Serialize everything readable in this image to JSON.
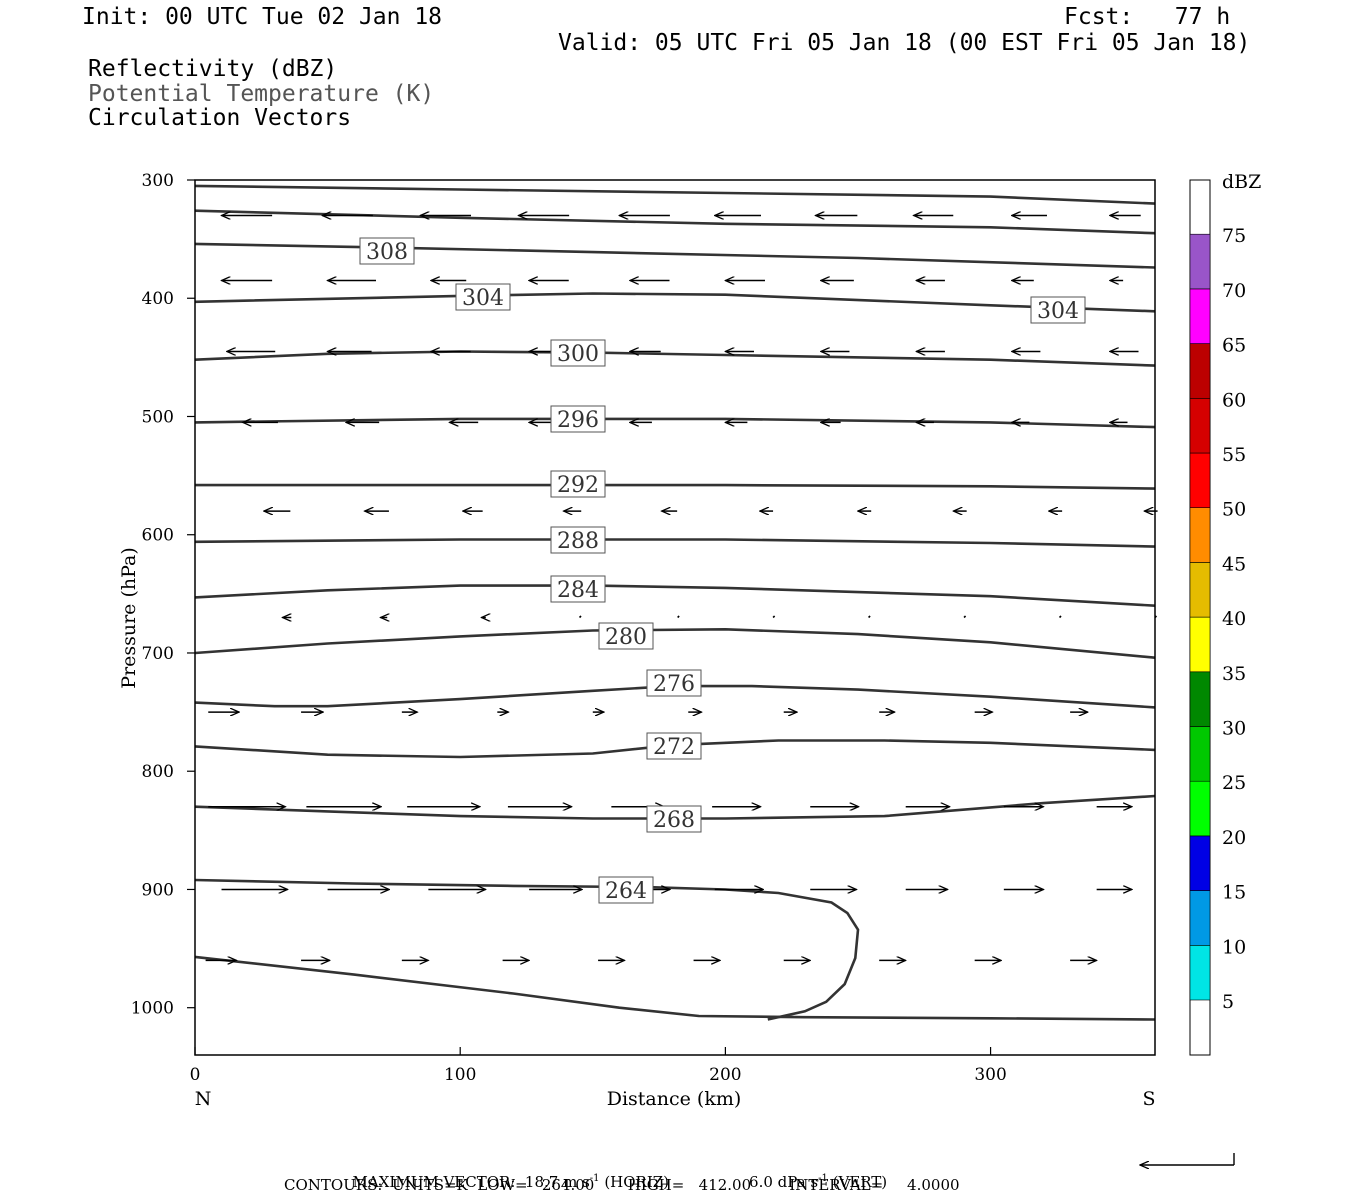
{
  "header": {
    "init": "Init: 00 UTC Tue 02 Jan 18",
    "fcst": "Fcst:   77 h",
    "valid": "Valid: 05 UTC Fri 05 Jan 18 (00 EST Fri 05 Jan 18)",
    "fields": [
      "Reflectivity (dBZ)",
      "Potential Temperature (K)",
      "Circulation Vectors"
    ]
  },
  "colors": {
    "contour": "#333333",
    "field2": "#555555",
    "colorbar": [
      "#00e5e5",
      "#0099e5",
      "#0000e5",
      "#00ff00",
      "#00c800",
      "#008800",
      "#ffff00",
      "#e5bc00",
      "#ff8c00",
      "#ff0000",
      "#d50000",
      "#bc0000",
      "#ff00ff",
      "#9955c9"
    ]
  },
  "chart_data": {
    "type": "line",
    "xlabel": "Distance (km)",
    "ylabel": "Pressure (hPa)",
    "xlim": [
      0,
      362
    ],
    "ylim": [
      1040,
      300
    ],
    "x_ticks": [
      0,
      100,
      200,
      300
    ],
    "y_ticks": [
      300,
      400,
      500,
      600,
      700,
      800,
      900,
      1000
    ],
    "end_labels": {
      "left": "N",
      "right": "S"
    },
    "colorbar": {
      "unit": "dBZ",
      "levels": [
        5,
        10,
        15,
        20,
        25,
        30,
        35,
        40,
        45,
        50,
        55,
        60,
        65,
        70,
        75
      ]
    },
    "isentropes": [
      {
        "label": "",
        "points": [
          [
            0,
            305
          ],
          [
            100,
            308
          ],
          [
            200,
            311
          ],
          [
            300,
            314
          ],
          [
            362,
            320
          ]
        ]
      },
      {
        "label": "",
        "points": [
          [
            0,
            326
          ],
          [
            100,
            332
          ],
          [
            200,
            337
          ],
          [
            300,
            340
          ],
          [
            362,
            345
          ]
        ]
      },
      {
        "label": "308",
        "points": [
          [
            0,
            354
          ],
          [
            70,
            357
          ],
          [
            150,
            361
          ],
          [
            250,
            366
          ],
          [
            362,
            374
          ]
        ]
      },
      {
        "label": "304",
        "points": [
          [
            0,
            403
          ],
          [
            100,
            398
          ],
          [
            150,
            396
          ],
          [
            200,
            397
          ],
          [
            300,
            406
          ],
          [
            362,
            411
          ]
        ]
      },
      {
        "label": "304",
        "points": []
      },
      {
        "label": "300",
        "points": [
          [
            0,
            452
          ],
          [
            50,
            447
          ],
          [
            100,
            445
          ],
          [
            150,
            446
          ],
          [
            200,
            448
          ],
          [
            300,
            452
          ],
          [
            362,
            457
          ]
        ]
      },
      {
        "label": "296",
        "points": [
          [
            0,
            505
          ],
          [
            100,
            502
          ],
          [
            200,
            502
          ],
          [
            300,
            505
          ],
          [
            362,
            509
          ]
        ]
      },
      {
        "label": "292",
        "points": [
          [
            0,
            558
          ],
          [
            100,
            558
          ],
          [
            200,
            558
          ],
          [
            300,
            559
          ],
          [
            362,
            561
          ]
        ]
      },
      {
        "label": "288",
        "points": [
          [
            0,
            606
          ],
          [
            100,
            604
          ],
          [
            200,
            604
          ],
          [
            300,
            607
          ],
          [
            362,
            610
          ]
        ]
      },
      {
        "label": "284",
        "points": [
          [
            0,
            653
          ],
          [
            50,
            647
          ],
          [
            100,
            643
          ],
          [
            150,
            643
          ],
          [
            200,
            645
          ],
          [
            300,
            652
          ],
          [
            362,
            660
          ]
        ]
      },
      {
        "label": "280",
        "points": [
          [
            0,
            700
          ],
          [
            50,
            692
          ],
          [
            100,
            686
          ],
          [
            150,
            681
          ],
          [
            200,
            680
          ],
          [
            250,
            684
          ],
          [
            300,
            691
          ],
          [
            362,
            704
          ]
        ]
      },
      {
        "label": "276",
        "points": [
          [
            0,
            742
          ],
          [
            30,
            745
          ],
          [
            50,
            745
          ],
          [
            100,
            739
          ],
          [
            150,
            732
          ],
          [
            180,
            728
          ],
          [
            210,
            728
          ],
          [
            250,
            731
          ],
          [
            300,
            737
          ],
          [
            362,
            746
          ]
        ]
      },
      {
        "label": "272",
        "points": [
          [
            0,
            779
          ],
          [
            50,
            786
          ],
          [
            100,
            788
          ],
          [
            150,
            785
          ],
          [
            180,
            778
          ],
          [
            220,
            774
          ],
          [
            260,
            774
          ],
          [
            300,
            776
          ],
          [
            362,
            782
          ]
        ]
      },
      {
        "label": "268",
        "points": [
          [
            0,
            830
          ],
          [
            50,
            834
          ],
          [
            100,
            838
          ],
          [
            150,
            840
          ],
          [
            200,
            840
          ],
          [
            260,
            838
          ],
          [
            320,
            827
          ],
          [
            362,
            821
          ]
        ]
      },
      {
        "label": "264",
        "points": [
          [
            0,
            892
          ],
          [
            60,
            895
          ],
          [
            120,
            897
          ],
          [
            170,
            898
          ],
          [
            200,
            900
          ],
          [
            220,
            903
          ],
          [
            240,
            911
          ],
          [
            246,
            920
          ],
          [
            250,
            934
          ],
          [
            249,
            958
          ],
          [
            245,
            980
          ],
          [
            238,
            995
          ],
          [
            230,
            1003
          ],
          [
            216,
            1010
          ]
        ]
      },
      {
        "label": "",
        "points": [
          [
            0,
            957
          ],
          [
            60,
            972
          ],
          [
            120,
            988
          ],
          [
            160,
            1000
          ],
          [
            190,
            1007
          ],
          [
            230,
            1008
          ],
          [
            300,
            1009
          ],
          [
            362,
            1010
          ]
        ]
      }
    ],
    "circulation_vectors": [
      {
        "row": 330,
        "x": [
          10,
          48,
          85,
          122,
          160,
          196,
          234,
          271,
          308,
          345
        ],
        "u": [
          -1,
          -1,
          -1,
          -1,
          -1,
          -1,
          -1,
          -1,
          -1,
          -1
        ],
        "len": [
          23,
          23,
          23,
          23,
          23,
          21,
          19,
          18,
          16,
          14
        ]
      },
      {
        "row": 385,
        "x": [
          10,
          50,
          89,
          126,
          164,
          200,
          236,
          272,
          308,
          345
        ],
        "u": [
          -1,
          -1,
          -1,
          -1,
          -1,
          -1,
          -1,
          -1,
          -1,
          -1
        ],
        "len": [
          23,
          22,
          16,
          18,
          18,
          18,
          15,
          13,
          10,
          6
        ]
      },
      {
        "row": 445,
        "x": [
          12,
          50,
          89,
          126,
          164,
          200,
          236,
          272,
          308,
          345
        ],
        "u": [
          -1,
          -1,
          -1,
          -1,
          -1,
          -1,
          -1,
          -1,
          -1,
          -1
        ],
        "len": [
          22,
          20,
          18,
          16,
          14,
          13,
          13,
          13,
          13,
          13
        ]
      },
      {
        "row": 505,
        "x": [
          18,
          57,
          96,
          126,
          164,
          200,
          236,
          272,
          308,
          345
        ],
        "u": [
          -1,
          -1,
          -1,
          -1,
          -1,
          -1,
          -1,
          -1,
          -1,
          -1
        ],
        "len": [
          16,
          15,
          13,
          10,
          10,
          10,
          9,
          8,
          8,
          8
        ]
      },
      {
        "row": 580,
        "x": [
          26,
          64,
          101,
          139,
          176,
          213,
          250,
          286,
          322,
          358
        ],
        "u": [
          -1,
          -1,
          -1,
          -1,
          -1,
          -1,
          -1,
          -1,
          -1,
          -1
        ],
        "len": [
          12,
          11,
          9,
          8,
          7,
          6,
          6,
          6,
          6,
          6
        ]
      },
      {
        "row": 670,
        "x": [
          33,
          70,
          108,
          145,
          182,
          218,
          254,
          290,
          326,
          362
        ],
        "u": [
          -1,
          -1,
          -1,
          0,
          0,
          0,
          0,
          0,
          0,
          0
        ],
        "len": [
          4,
          3,
          2,
          1,
          1,
          1,
          1,
          1,
          1,
          1
        ]
      },
      {
        "row": 750,
        "x": [
          5,
          40,
          78,
          114,
          150,
          186,
          222,
          258,
          294,
          330
        ],
        "u": [
          1,
          1,
          1,
          1,
          1,
          1,
          1,
          1,
          1,
          1
        ],
        "len": [
          14,
          10,
          7,
          5,
          5,
          6,
          6,
          7,
          8,
          8
        ]
      },
      {
        "row": 830,
        "x": [
          5,
          42,
          80,
          118,
          157,
          195,
          232,
          268,
          305,
          340
        ],
        "u": [
          1,
          1,
          1,
          1,
          1,
          1,
          1,
          1,
          1,
          1
        ],
        "len": [
          35,
          34,
          33,
          29,
          24,
          22,
          22,
          20,
          18,
          16
        ]
      },
      {
        "row": 900,
        "x": [
          10,
          50,
          88,
          126,
          160,
          196,
          232,
          268,
          305,
          340
        ],
        "u": [
          1,
          1,
          1,
          1,
          1,
          1,
          1,
          1,
          1,
          1
        ],
        "len": [
          30,
          28,
          26,
          24,
          23,
          22,
          21,
          19,
          18,
          16
        ]
      },
      {
        "row": 960,
        "x": [
          4,
          40,
          78,
          116,
          152,
          188,
          222,
          258,
          294,
          330
        ],
        "u": [
          1,
          1,
          1,
          1,
          1,
          1,
          1,
          1,
          1,
          1
        ],
        "len": [
          14,
          13,
          12,
          12,
          12,
          12,
          12,
          12,
          12,
          12
        ]
      }
    ],
    "footer": {
      "max_vector": "MAXIMUM VECTOR:  18.7 m s",
      "horiz": "(HORIZ)",
      "vert_val": "6.0 dPa s",
      "vert": "(VERT)",
      "contours": "CONTOURS:  UNITS=K  LOW=   264.00       HIGH=   412.00        INTERVAL=     4.0000"
    }
  }
}
